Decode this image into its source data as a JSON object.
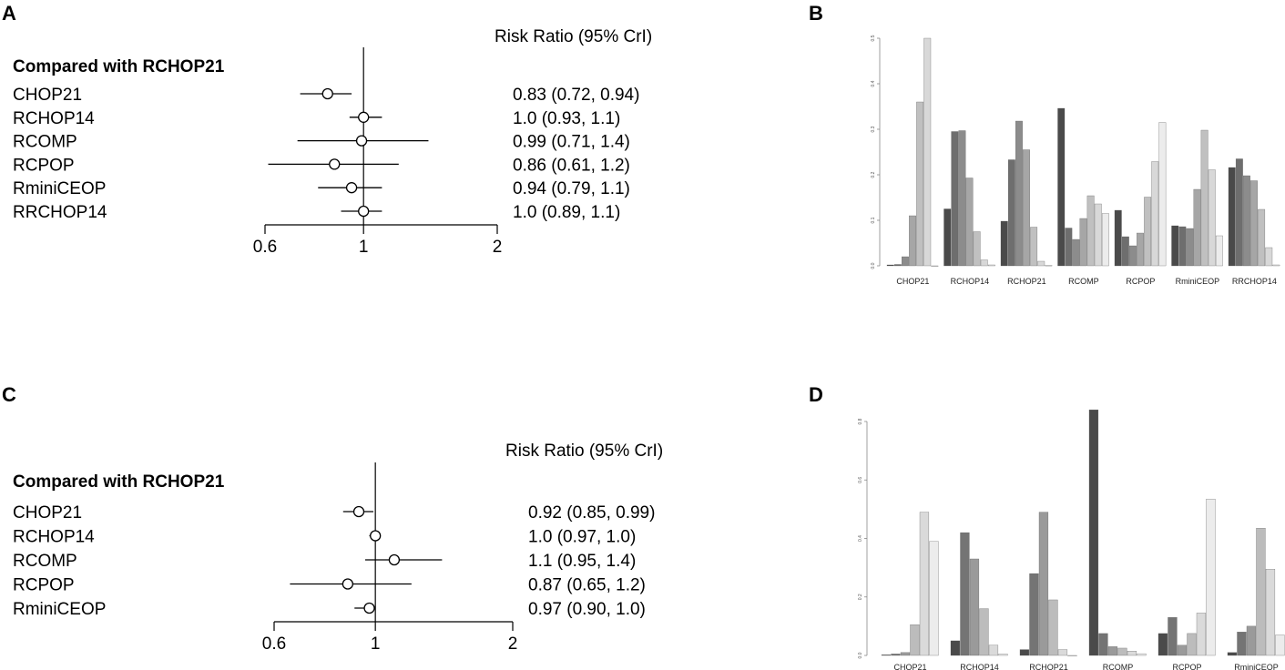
{
  "panels": [
    "A",
    "B",
    "C",
    "D"
  ],
  "chart_data": [
    {
      "panel": "A",
      "type": "forest",
      "title": "Risk Ratio (95% CrI)",
      "subtitle": "Compared with RCHOP21",
      "xaxis": {
        "scale": "log",
        "range": [
          0.6,
          2
        ],
        "ticks": [
          "0.6",
          "1",
          "2"
        ],
        "reference": 1
      },
      "rows": [
        {
          "label": "CHOP21",
          "est": 0.83,
          "lo": 0.72,
          "hi": 0.94,
          "text": "0.83 (0.72, 0.94)"
        },
        {
          "label": "RCHOP14",
          "est": 1.0,
          "lo": 0.93,
          "hi": 1.1,
          "text": "1.0 (0.93, 1.1)"
        },
        {
          "label": "RCOMP",
          "est": 0.99,
          "lo": 0.71,
          "hi": 1.4,
          "text": "0.99 (0.71, 1.4)"
        },
        {
          "label": "RCPOP",
          "est": 0.86,
          "lo": 0.61,
          "hi": 1.2,
          "text": "0.86 (0.61, 1.2)"
        },
        {
          "label": "RminiCEOP",
          "est": 0.94,
          "lo": 0.79,
          "hi": 1.1,
          "text": "0.94 (0.79, 1.1)"
        },
        {
          "label": "RRCHOP14",
          "est": 1.0,
          "lo": 0.89,
          "hi": 1.1,
          "text": "1.0 (0.89, 1.1)"
        }
      ]
    },
    {
      "panel": "B",
      "type": "bar",
      "title": "",
      "ylim": [
        0,
        0.5
      ],
      "yticks": [
        "0.0",
        "0.1",
        "0.2",
        "0.3",
        "0.4",
        "0.5"
      ],
      "categories": [
        "CHOP21",
        "RCHOP14",
        "RCHOP21",
        "RCOMP",
        "RCPOP",
        "RminiCEOP",
        "RRCHOP14"
      ],
      "series_colors": [
        "#4a4a4a",
        "#6e6e6e",
        "#8c8c8c",
        "#a6a6a6",
        "#c0c0c0",
        "#d8d8d8",
        "#ececec"
      ],
      "values": [
        [
          0.002,
          0.003,
          0.02,
          0.11,
          0.36,
          0.5,
          0.0
        ],
        [
          0.125,
          0.295,
          0.297,
          0.193,
          0.075,
          0.013,
          0.002
        ],
        [
          0.098,
          0.233,
          0.318,
          0.255,
          0.085,
          0.01,
          0.001
        ],
        [
          0.346,
          0.083,
          0.058,
          0.104,
          0.154,
          0.136,
          0.115
        ],
        [
          0.122,
          0.064,
          0.044,
          0.072,
          0.151,
          0.229,
          0.315
        ],
        [
          0.088,
          0.086,
          0.082,
          0.168,
          0.298,
          0.211,
          0.066
        ],
        [
          0.216,
          0.235,
          0.198,
          0.187,
          0.124,
          0.04,
          0.002
        ]
      ]
    },
    {
      "panel": "C",
      "type": "forest",
      "title": "Risk Ratio (95% CrI)",
      "subtitle": "Compared with RCHOP21",
      "xaxis": {
        "scale": "log",
        "range": [
          0.6,
          2
        ],
        "ticks": [
          "0.6",
          "1",
          "2"
        ],
        "reference": 1
      },
      "rows": [
        {
          "label": "CHOP21",
          "est": 0.92,
          "lo": 0.85,
          "hi": 0.99,
          "text": "0.92 (0.85, 0.99)"
        },
        {
          "label": "RCHOP14",
          "est": 1.0,
          "lo": 0.97,
          "hi": 1.0,
          "text": "1.0 (0.97, 1.0)"
        },
        {
          "label": "RCOMP",
          "est": 1.1,
          "lo": 0.95,
          "hi": 1.4,
          "text": "1.1 (0.95, 1.4)"
        },
        {
          "label": "RCPOP",
          "est": 0.87,
          "lo": 0.65,
          "hi": 1.2,
          "text": "0.87 (0.65, 1.2)"
        },
        {
          "label": "RminiCEOP",
          "est": 0.97,
          "lo": 0.9,
          "hi": 1.0,
          "text": "0.97 (0.90, 1.0)"
        }
      ]
    },
    {
      "panel": "D",
      "type": "bar",
      "title": "",
      "ylim": [
        0,
        0.8
      ],
      "yticks": [
        "0.0",
        "0.2",
        "0.4",
        "0.6",
        "0.8"
      ],
      "categories": [
        "CHOP21",
        "RCHOP14",
        "RCHOP21",
        "RCOMP",
        "RCPOP",
        "RminiCEOP"
      ],
      "series_colors": [
        "#4a4a4a",
        "#747474",
        "#9a9a9a",
        "#bcbcbc",
        "#dadada",
        "#ececec"
      ],
      "values": [
        [
          0.002,
          0.005,
          0.01,
          0.105,
          0.49,
          0.39
        ],
        [
          0.05,
          0.42,
          0.33,
          0.16,
          0.035,
          0.005
        ],
        [
          0.02,
          0.28,
          0.49,
          0.19,
          0.02,
          0.0
        ],
        [
          0.84,
          0.075,
          0.03,
          0.025,
          0.015,
          0.006
        ],
        [
          0.075,
          0.13,
          0.035,
          0.075,
          0.145,
          0.535
        ],
        [
          0.01,
          0.08,
          0.1,
          0.435,
          0.295,
          0.07
        ]
      ]
    }
  ]
}
